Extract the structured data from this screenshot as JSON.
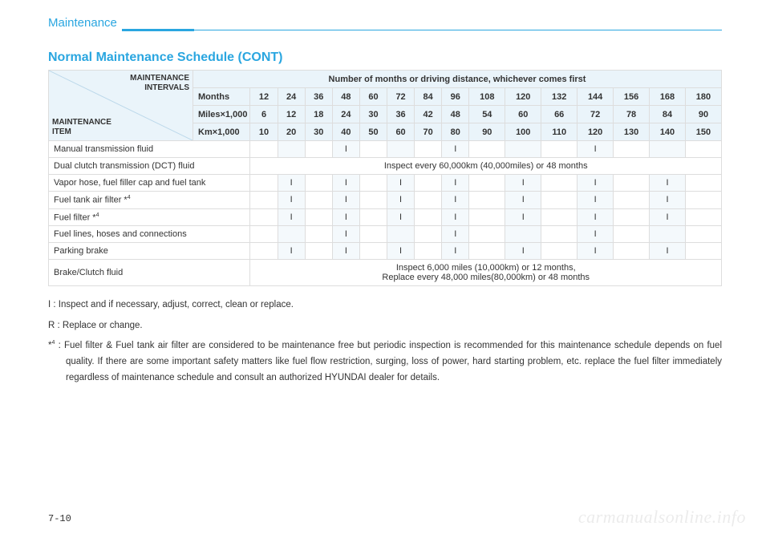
{
  "header": {
    "section": "Maintenance"
  },
  "title": "Normal Maintenance Schedule (CONT)",
  "corner": {
    "top_right_1": "MAINTENANCE",
    "top_right_2": "INTERVALS",
    "bot_left_1": "MAINTENANCE",
    "bot_left_2": "ITEM"
  },
  "banner": "Number of months or driving distance, whichever comes first",
  "unit_rows": [
    {
      "label": "Months",
      "vals": [
        "12",
        "24",
        "36",
        "48",
        "60",
        "72",
        "84",
        "96",
        "108",
        "120",
        "132",
        "144",
        "156",
        "168",
        "180"
      ]
    },
    {
      "label": "Miles×1,000",
      "vals": [
        "6",
        "12",
        "18",
        "24",
        "30",
        "36",
        "42",
        "48",
        "54",
        "60",
        "66",
        "72",
        "78",
        "84",
        "90"
      ]
    },
    {
      "label": "Km×1,000",
      "vals": [
        "10",
        "20",
        "30",
        "40",
        "50",
        "60",
        "70",
        "80",
        "90",
        "100",
        "110",
        "120",
        "130",
        "140",
        "150"
      ]
    }
  ],
  "items": [
    {
      "label": "Manual transmission fluid",
      "cells": [
        "",
        "",
        "",
        "I",
        "",
        "",
        "",
        "I",
        "",
        "",
        "",
        "I",
        "",
        "",
        ""
      ]
    },
    {
      "label": "Dual clutch transmission (DCT) fluid",
      "span": "Inspect every 60,000km (40,000miles) or 48 months"
    },
    {
      "label": "Vapor hose, fuel filler cap and fuel tank",
      "cells": [
        "",
        "I",
        "",
        "I",
        "",
        "I",
        "",
        "I",
        "",
        "I",
        "",
        "I",
        "",
        "I",
        ""
      ]
    },
    {
      "label": "Fuel tank air filter *",
      "sup": "4",
      "cells": [
        "",
        "I",
        "",
        "I",
        "",
        "I",
        "",
        "I",
        "",
        "I",
        "",
        "I",
        "",
        "I",
        ""
      ]
    },
    {
      "label": "Fuel filter *",
      "sup": "4",
      "cells": [
        "",
        "I",
        "",
        "I",
        "",
        "I",
        "",
        "I",
        "",
        "I",
        "",
        "I",
        "",
        "I",
        ""
      ]
    },
    {
      "label": "Fuel lines, hoses and connections",
      "cells": [
        "",
        "",
        "",
        "I",
        "",
        "",
        "",
        "I",
        "",
        "",
        "",
        "I",
        "",
        "",
        ""
      ]
    },
    {
      "label": "Parking brake",
      "cells": [
        "",
        "I",
        "",
        "I",
        "",
        "I",
        "",
        "I",
        "",
        "I",
        "",
        "I",
        "",
        "I",
        ""
      ]
    },
    {
      "label": "Brake/Clutch fluid",
      "span2": [
        "Inspect 6,000 miles (10,000km) or 12 months,",
        "Replace every 48,000 miles(80,000km) or 48 months"
      ]
    }
  ],
  "legend": {
    "i": "I  : Inspect and if necessary, adjust, correct, clean or replace.",
    "r": "R : Replace or change.",
    "note_prefix": "*",
    "note_sup": "4",
    "note_body": " : Fuel filter & Fuel tank air filter are considered to be maintenance free but periodic inspection is recommended for this maintenance schedule depends on fuel quality. If there are some important safety matters like fuel flow restriction, surging, loss of power, hard starting problem, etc. replace the fuel filter immediately regardless of maintenance schedule and consult an authorized HYUNDAI dealer for details."
  },
  "page_num": "7-10",
  "watermark": "carmanualsonline.info",
  "colors": {
    "accent": "#2aa6e0",
    "header_bg": "#eaf4fa",
    "alt_bg": "#f4f9fc",
    "label_bg": "#f7fbfd",
    "border": "#dddddd"
  }
}
